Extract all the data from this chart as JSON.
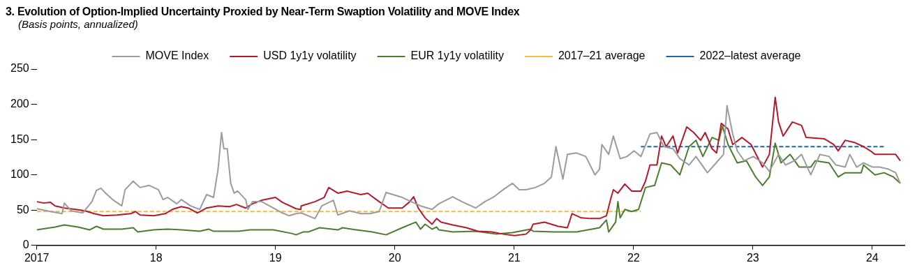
{
  "chart_data": {
    "type": "line",
    "title": "3. Evolution of Option-Implied Uncertainty Proxied by Near-Term Swaption Volatility and MOVE Index",
    "subtitle": "(Basis points, annualized)",
    "xlim": [
      2017,
      2024.27
    ],
    "xticks": [
      {
        "value": 2017,
        "label": "2017"
      },
      {
        "value": 2018,
        "label": "18"
      },
      {
        "value": 2019,
        "label": "19"
      },
      {
        "value": 2020,
        "label": "20"
      },
      {
        "value": 2021,
        "label": "21"
      },
      {
        "value": 2022,
        "label": "22"
      },
      {
        "value": 2023,
        "label": "23"
      },
      {
        "value": 2024,
        "label": "24"
      }
    ],
    "ylim": [
      0,
      250
    ],
    "yticks": [
      0,
      50,
      100,
      150,
      200,
      250
    ],
    "legend": "top",
    "series": [
      {
        "name": "MOVE Index",
        "color": "#9a9b9d",
        "x": [
          2017,
          2017.115,
          2017.212,
          2017.231,
          2017.288,
          2017.385,
          2017.462,
          2017.5,
          2017.538,
          2017.577,
          2017.635,
          2017.712,
          2017.74,
          2017.808,
          2017.865,
          2017.942,
          2018.019,
          2018.058,
          2018.096,
          2018.173,
          2018.212,
          2018.288,
          2018.365,
          2018.423,
          2018.481,
          2018.519,
          2018.548,
          2018.567,
          2018.596,
          2018.625,
          2018.654,
          2018.683,
          2018.75,
          2018.769,
          2018.808,
          2018.885,
          2018.981,
          2019.058,
          2019.115,
          2019.173,
          2019.215,
          2019.331,
          2019.388,
          2019.485,
          2019.523,
          2019.619,
          2019.715,
          2019.792,
          2019.869,
          2019.927,
          2019.985,
          2020.062,
          2020.138,
          2020.215,
          2020.312,
          2020.369,
          2020.485,
          2020.562,
          2020.677,
          2020.754,
          2020.831,
          2020.908,
          2020.985,
          2021.042,
          2021.1,
          2021.177,
          2021.254,
          2021.312,
          2021.35,
          2021.408,
          2021.446,
          2021.523,
          2021.6,
          2021.677,
          2021.715,
          2021.735,
          2021.792,
          2021.831,
          2021.888,
          2021.946,
          2022.004,
          2022.062,
          2022.138,
          2022.196,
          2022.254,
          2022.331,
          2022.388,
          2022.465,
          2022.523,
          2022.619,
          2022.677,
          2022.754,
          2022.783,
          2022.831,
          2022.869,
          2022.927,
          2023.004,
          2023.081,
          2023.138,
          2023.215,
          2023.273,
          2023.35,
          2023.408,
          2023.485,
          2023.562,
          2023.638,
          2023.696,
          2023.773,
          2023.812,
          2023.869,
          2023.927,
          2024.004,
          2024.062,
          2024.138,
          2024.196,
          2024.235
        ],
        "values": [
          52,
          48,
          45,
          60,
          49,
          46,
          62,
          78,
          81,
          74,
          65,
          56,
          79,
          91,
          82,
          85,
          79,
          65,
          68,
          59,
          65,
          56,
          51,
          72,
          68,
          108,
          160,
          137,
          137,
          88,
          74,
          77,
          65,
          51,
          62,
          62,
          53,
          46,
          42,
          45,
          46,
          38,
          56,
          64,
          43,
          49,
          45,
          45,
          48,
          75,
          72,
          68,
          62,
          56,
          51,
          59,
          69,
          62,
          53,
          62,
          69,
          79,
          88,
          79,
          79,
          82,
          88,
          97,
          140,
          94,
          129,
          131,
          126,
          100,
          108,
          143,
          129,
          155,
          123,
          126,
          134,
          126,
          158,
          160,
          140,
          137,
          123,
          114,
          126,
          103,
          114,
          129,
          198,
          158,
          134,
          120,
          126,
          117,
          105,
          129,
          114,
          120,
          129,
          100,
          129,
          126,
          114,
          111,
          129,
          111,
          117,
          111,
          111,
          108,
          103,
          88
        ]
      },
      {
        "name": "USD 1y1y volatility",
        "color": "#b5182b",
        "x": [
          2017,
          2017.058,
          2017.115,
          2017.154,
          2017.231,
          2017.327,
          2017.404,
          2017.481,
          2017.558,
          2017.673,
          2017.788,
          2017.827,
          2017.865,
          2017.981,
          2018.077,
          2018.135,
          2018.212,
          2018.269,
          2018.346,
          2018.423,
          2018.519,
          2018.615,
          2018.673,
          2018.75,
          2018.808,
          2018.885,
          2019.0,
          2019.058,
          2019.173,
          2019.212,
          2019.215,
          2019.331,
          2019.408,
          2019.446,
          2019.523,
          2019.6,
          2019.715,
          2019.773,
          2019.869,
          2019.946,
          2020.062,
          2020.119,
          2020.158,
          2020.196,
          2020.254,
          2020.312,
          2020.35,
          2020.388,
          2020.485,
          2020.6,
          2020.696,
          2020.812,
          2020.908,
          2021.004,
          2021.1,
          2021.138,
          2021.158,
          2021.254,
          2021.369,
          2021.446,
          2021.485,
          2021.562,
          2021.638,
          2021.715,
          2021.773,
          2021.812,
          2021.831,
          2021.869,
          2021.927,
          2021.985,
          2022.062,
          2022.1,
          2022.138,
          2022.196,
          2022.235,
          2022.273,
          2022.331,
          2022.369,
          2022.446,
          2022.504,
          2022.562,
          2022.6,
          2022.658,
          2022.696,
          2022.735,
          2022.792,
          2022.831,
          2022.908,
          2022.985,
          2023.081,
          2023.138,
          2023.187,
          2023.215,
          2023.254,
          2023.331,
          2023.408,
          2023.446,
          2023.6,
          2023.677,
          2023.715,
          2023.773,
          2023.85,
          2023.927,
          2023.985,
          2024.023,
          2024.158,
          2024.196,
          2024.235
        ],
        "values": [
          62,
          60,
          61,
          56,
          53,
          51,
          49,
          45,
          42,
          43,
          45,
          48,
          43,
          42,
          45,
          51,
          55,
          53,
          46,
          53,
          56,
          55,
          58,
          53,
          59,
          64,
          68,
          61,
          52,
          51,
          56,
          62,
          68,
          82,
          74,
          77,
          72,
          74,
          62,
          53,
          53,
          61,
          69,
          53,
          39,
          30,
          38,
          33,
          29,
          25,
          20,
          19,
          16,
          14,
          16,
          22,
          30,
          33,
          27,
          25,
          45,
          39,
          38,
          38,
          42,
          68,
          79,
          74,
          87,
          77,
          77,
          91,
          114,
          114,
          155,
          140,
          155,
          131,
          168,
          160,
          149,
          160,
          137,
          131,
          173,
          165,
          143,
          153,
          143,
          111,
          129,
          210,
          175,
          155,
          175,
          170,
          153,
          151,
          143,
          134,
          149,
          146,
          140,
          134,
          129,
          129,
          129,
          120
        ]
      },
      {
        "name": "EUR 1y1y volatility",
        "color": "#4a7d2e",
        "x": [
          2017,
          2017.154,
          2017.231,
          2017.346,
          2017.442,
          2017.5,
          2017.558,
          2017.712,
          2017.808,
          2017.846,
          2017.981,
          2018.096,
          2018.212,
          2018.365,
          2018.442,
          2018.481,
          2018.692,
          2018.788,
          2018.981,
          2019.135,
          2019.173,
          2019.231,
          2019.273,
          2019.369,
          2019.523,
          2019.562,
          2019.677,
          2019.81,
          2019.927,
          2020.062,
          2020.177,
          2020.215,
          2020.254,
          2020.312,
          2020.35,
          2020.369,
          2020.485,
          2020.677,
          2020.85,
          2020.985,
          2021.138,
          2021.158,
          2021.331,
          2021.523,
          2021.715,
          2021.773,
          2021.792,
          2021.85,
          2021.869,
          2021.888,
          2021.927,
          2021.985,
          2022.042,
          2022.1,
          2022.177,
          2022.235,
          2022.312,
          2022.388,
          2022.465,
          2022.523,
          2022.581,
          2022.658,
          2022.715,
          2022.745,
          2022.792,
          2022.869,
          2022.946,
          2023.023,
          2023.081,
          2023.138,
          2023.187,
          2023.235,
          2023.312,
          2023.388,
          2023.485,
          2023.523,
          2023.638,
          2023.715,
          2023.773,
          2023.908,
          2023.927,
          2024.023,
          2024.1,
          2024.177,
          2024.235
        ],
        "values": [
          22,
          26,
          29,
          26,
          22,
          27,
          23,
          23,
          25,
          19,
          22,
          23,
          22,
          20,
          23,
          20,
          20,
          22,
          22,
          17,
          15,
          19,
          19,
          25,
          22,
          25,
          22,
          19,
          15,
          25,
          33,
          23,
          30,
          23,
          26,
          22,
          19,
          20,
          16,
          18,
          23,
          20,
          19,
          19,
          25,
          36,
          19,
          33,
          62,
          39,
          51,
          48,
          51,
          82,
          85,
          117,
          114,
          100,
          140,
          149,
          126,
          153,
          149,
          169,
          143,
          117,
          120,
          97,
          85,
          97,
          145,
          117,
          129,
          111,
          111,
          120,
          117,
          97,
          103,
          103,
          114,
          100,
          103,
          97,
          88
        ]
      },
      {
        "name": "2017–21 average",
        "color": "#f6b93b",
        "line_style": "dashed",
        "x": [
          2017,
          2022.062
        ],
        "values": [
          48,
          48
        ]
      },
      {
        "name": "2022–latest average",
        "color": "#1f66a8",
        "line_style": "dashed",
        "x": [
          2022.062,
          2024.11
        ],
        "values": [
          140,
          140
        ]
      }
    ]
  }
}
